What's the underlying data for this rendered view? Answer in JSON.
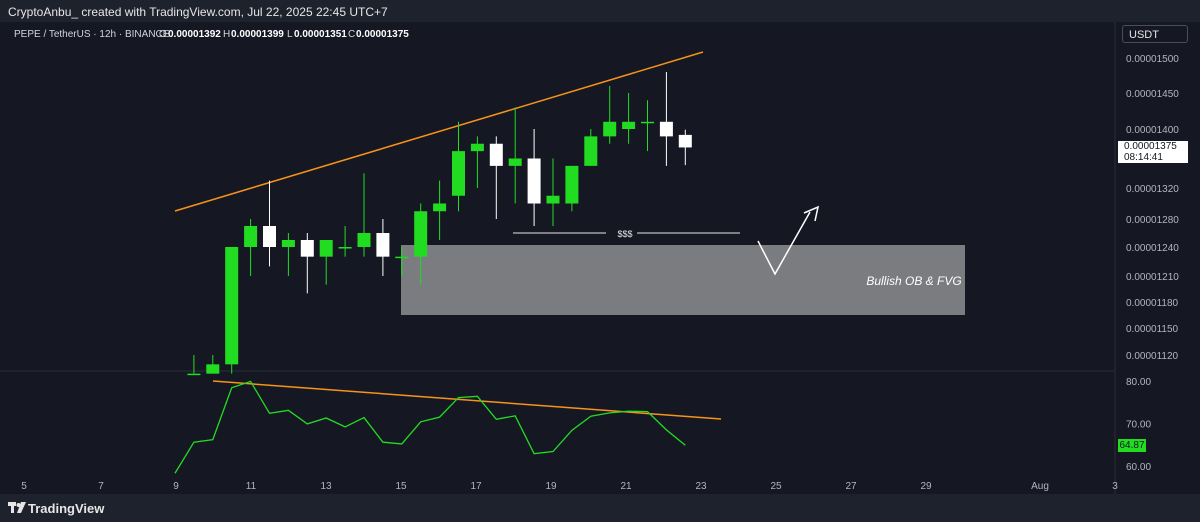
{
  "header": {
    "attribution": "CryptoAnbu_ created with TradingView.com, Jul 22, 2025 22:45 UTC+7"
  },
  "symbol_line": {
    "title": "PEPE / TetherUS · 12h · BINANCE",
    "o_label": "O",
    "o_value": "0.00001392",
    "h_label": "H",
    "h_value": "0.00001399",
    "l_label": "L",
    "l_value": "0.00001351",
    "c_label": "C",
    "c_value": "0.00001375"
  },
  "currency_button": "USDT",
  "last_price": {
    "value": "0.00001375",
    "countdown": "08:14:41"
  },
  "rsi_last": "64.87",
  "annotations": {
    "liquidity": "$$$",
    "zone": "Bullish OB & FVG"
  },
  "footer": {
    "brand": "TradingView"
  },
  "colors": {
    "up": "#22dc22",
    "down": "#ffffff",
    "trendline": "#f7931a",
    "rsi": "#22dc22",
    "zone": "#7a7c80",
    "background": "#151823"
  },
  "chart_data": [
    {
      "type": "candlestick",
      "title": "PEPE / TetherUS · 12h · BINANCE",
      "y_ticks": [
        "0.00001500",
        "0.00001450",
        "0.00001400",
        "0.00001320",
        "0.00001280",
        "0.00001240",
        "0.00001210",
        "0.00001180",
        "0.00001150",
        "0.00001120"
      ],
      "x_ticks": [
        "5",
        "7",
        "9",
        "11",
        "13",
        "15",
        "17",
        "19",
        "21",
        "23",
        "25",
        "27",
        "29",
        "Aug",
        "3"
      ],
      "candles": [
        {
          "day": 9.5,
          "open": 1.1e-05,
          "high": 1.12e-05,
          "low": 1.1e-05,
          "close": 1.1e-05
        },
        {
          "day": 10.0,
          "open": 1.1e-05,
          "high": 1.12e-05,
          "low": 1.1e-05,
          "close": 1.11e-05
        },
        {
          "day": 10.5,
          "open": 1.11e-05,
          "high": 1.24e-05,
          "low": 1.1e-05,
          "close": 1.24e-05
        },
        {
          "day": 11.0,
          "open": 1.24e-05,
          "high": 1.28e-05,
          "low": 1.21e-05,
          "close": 1.27e-05
        },
        {
          "day": 11.5,
          "open": 1.27e-05,
          "high": 1.33e-05,
          "low": 1.22e-05,
          "close": 1.24e-05
        },
        {
          "day": 12.0,
          "open": 1.24e-05,
          "high": 1.26e-05,
          "low": 1.21e-05,
          "close": 1.25e-05
        },
        {
          "day": 12.5,
          "open": 1.25e-05,
          "high": 1.26e-05,
          "low": 1.19e-05,
          "close": 1.23e-05
        },
        {
          "day": 13.0,
          "open": 1.23e-05,
          "high": 1.25e-05,
          "low": 1.2e-05,
          "close": 1.25e-05
        },
        {
          "day": 13.5,
          "open": 1.24e-05,
          "high": 1.27e-05,
          "low": 1.23e-05,
          "close": 1.24e-05
        },
        {
          "day": 14.0,
          "open": 1.24e-05,
          "high": 1.34e-05,
          "low": 1.23e-05,
          "close": 1.26e-05
        },
        {
          "day": 14.5,
          "open": 1.26e-05,
          "high": 1.28e-05,
          "low": 1.21e-05,
          "close": 1.23e-05
        },
        {
          "day": 15.0,
          "open": 1.23e-05,
          "high": 1.24e-05,
          "low": 1.21e-05,
          "close": 1.23e-05
        },
        {
          "day": 15.5,
          "open": 1.23e-05,
          "high": 1.3e-05,
          "low": 1.2e-05,
          "close": 1.29e-05
        },
        {
          "day": 16.0,
          "open": 1.29e-05,
          "high": 1.33e-05,
          "low": 1.25e-05,
          "close": 1.3e-05
        },
        {
          "day": 16.5,
          "open": 1.31e-05,
          "high": 1.41e-05,
          "low": 1.29e-05,
          "close": 1.37e-05
        },
        {
          "day": 17.0,
          "open": 1.37e-05,
          "high": 1.39e-05,
          "low": 1.32e-05,
          "close": 1.38e-05
        },
        {
          "day": 17.5,
          "open": 1.38e-05,
          "high": 1.39e-05,
          "low": 1.28e-05,
          "close": 1.35e-05
        },
        {
          "day": 18.0,
          "open": 1.35e-05,
          "high": 1.43e-05,
          "low": 1.3e-05,
          "close": 1.36e-05
        },
        {
          "day": 18.5,
          "open": 1.36e-05,
          "high": 1.4e-05,
          "low": 1.27e-05,
          "close": 1.3e-05
        },
        {
          "day": 19.0,
          "open": 1.3e-05,
          "high": 1.36e-05,
          "low": 1.27e-05,
          "close": 1.31e-05
        },
        {
          "day": 19.5,
          "open": 1.3e-05,
          "high": 1.35e-05,
          "low": 1.29e-05,
          "close": 1.35e-05
        },
        {
          "day": 20.0,
          "open": 1.35e-05,
          "high": 1.4e-05,
          "low": 1.35e-05,
          "close": 1.39e-05
        },
        {
          "day": 20.5,
          "open": 1.39e-05,
          "high": 1.46e-05,
          "low": 1.38e-05,
          "close": 1.41e-05
        },
        {
          "day": 21.0,
          "open": 1.4e-05,
          "high": 1.45e-05,
          "low": 1.38e-05,
          "close": 1.41e-05
        },
        {
          "day": 21.5,
          "open": 1.41e-05,
          "high": 1.44e-05,
          "low": 1.37e-05,
          "close": 1.41e-05
        },
        {
          "day": 22.0,
          "open": 1.41e-05,
          "high": 1.48e-05,
          "low": 1.35e-05,
          "close": 1.39e-05
        },
        {
          "day": 22.5,
          "open": 1.392e-05,
          "high": 1.399e-05,
          "low": 1.351e-05,
          "close": 1.375e-05
        }
      ]
    },
    {
      "type": "line",
      "title": "RSI",
      "y_ticks": [
        "80.00",
        "70.00",
        "60.00"
      ],
      "x": [
        9.0,
        9.5,
        10.0,
        10.5,
        11.0,
        11.5,
        12.0,
        12.5,
        13.0,
        13.5,
        14.0,
        14.5,
        15.0,
        15.5,
        16.0,
        16.5,
        17.0,
        17.5,
        18.0,
        18.5,
        19.0,
        19.5,
        20.0,
        20.5,
        21.0,
        21.5,
        22.0,
        22.5
      ],
      "values": [
        58.3,
        65.6,
        66.2,
        78.4,
        79.9,
        72.4,
        73.1,
        69.9,
        71.3,
        69.2,
        71.4,
        65.6,
        65.2,
        70.4,
        71.5,
        76.1,
        76.4,
        71.0,
        71.8,
        62.9,
        63.4,
        68.4,
        71.7,
        72.5,
        72.9,
        72.8,
        68.5,
        64.87
      ]
    }
  ]
}
